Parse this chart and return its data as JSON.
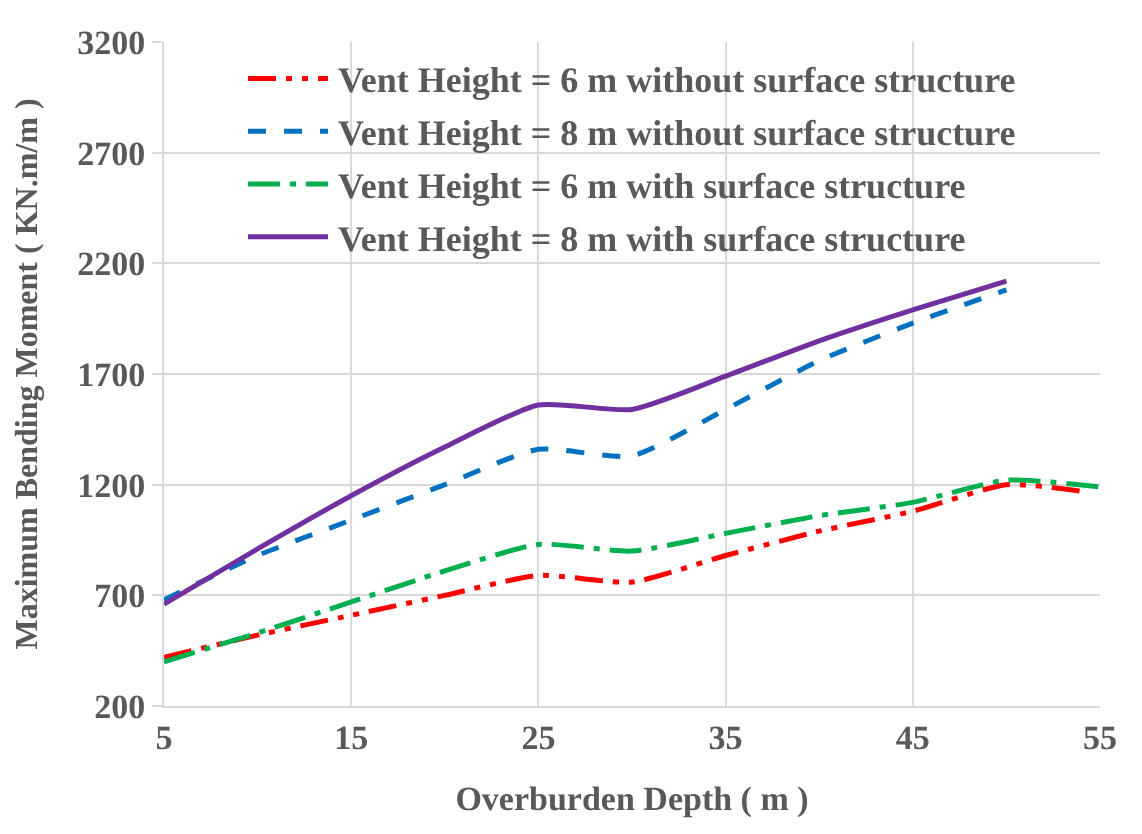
{
  "chart_data": {
    "type": "line",
    "xlabel": "Overburden Depth ( m )",
    "ylabel": "Maximum Bending Moment ( KN.m/m )",
    "x": [
      5,
      10,
      15,
      20,
      25,
      30,
      35,
      40,
      45,
      50,
      54
    ],
    "xlim": [
      5,
      55
    ],
    "xticks": [
      5,
      15,
      25,
      35,
      45,
      55
    ],
    "ylim": [
      200,
      3200
    ],
    "yticks": [
      200,
      700,
      1200,
      1700,
      2200,
      2700,
      3200
    ],
    "grid": true,
    "legend": "top",
    "marker": "none",
    "series": [
      {
        "name": "Vent Height = 6 m without surface structure",
        "color": "#ff0000",
        "line_style": "dashdotdot",
        "values": [
          420,
          520,
          610,
          700,
          790,
          760,
          880,
          990,
          1080,
          1200,
          1170
        ]
      },
      {
        "name": "Vent Height = 8 m without surface structure",
        "color": "#0070c0",
        "line_style": "dashed",
        "values": [
          680,
          880,
          1040,
          1200,
          1360,
          1330,
          1540,
          1760,
          1930,
          2080,
          null
        ]
      },
      {
        "name": "Vent Height = 6 m with surface structure",
        "color": "#00b050",
        "line_style": "dashdot",
        "x": [
          5,
          10,
          15,
          20,
          25,
          30,
          35,
          40,
          45,
          50,
          55
        ],
        "values": [
          400,
          530,
          670,
          810,
          930,
          900,
          980,
          1060,
          1120,
          1220,
          1190
        ]
      },
      {
        "name": "Vent Height = 8 m with surface structure",
        "color": "#7030a0",
        "line_style": "solid",
        "values": [
          660,
          910,
          1150,
          1370,
          1560,
          1540,
          1690,
          1850,
          1990,
          2120,
          null
        ]
      }
    ]
  }
}
